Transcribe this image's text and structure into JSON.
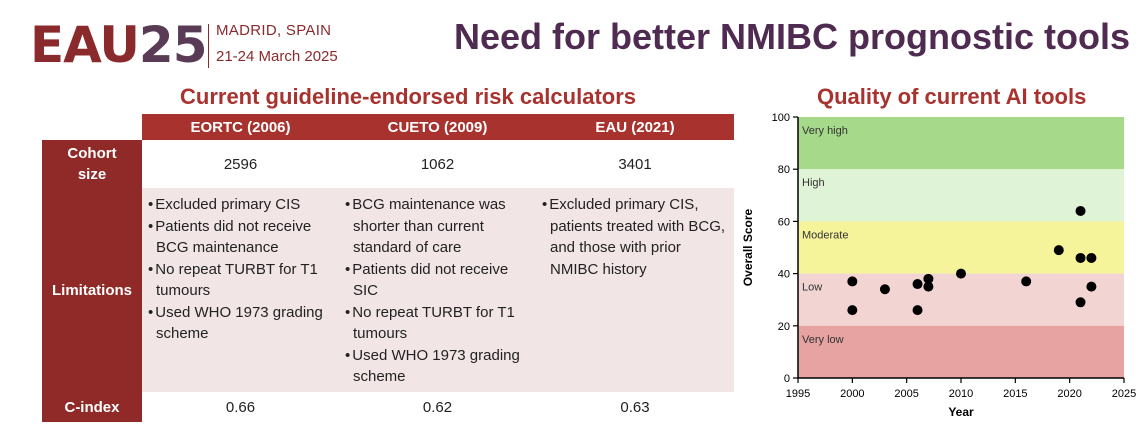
{
  "logo": {
    "mark": "EAU",
    "mark_year": "25",
    "city": "MADRID, SPAIN",
    "dates": "21-24 March 2025"
  },
  "title": "Need for better NMIBC prognostic tools",
  "left_section": {
    "title": "Current guideline-endorsed risk calculators",
    "columns": [
      "EORTC (2006)",
      "CUETO (2009)",
      "EAU (2021)"
    ],
    "rows": {
      "cohort": {
        "label_line1": "Cohort",
        "label_line2": "size",
        "values": [
          "2596",
          "1062",
          "3401"
        ]
      },
      "limitations": {
        "label": "Limitations",
        "cells": [
          [
            "Excluded primary CIS",
            "Patients did not receive BCG maintenance",
            "No repeat TURBT for T1 tumours",
            "Used WHO 1973 grading scheme"
          ],
          [
            "BCG maintenance was shorter than current standard of care",
            "Patients did not receive SIC",
            "No repeat TURBT for T1 tumours",
            "Used WHO 1973 grading scheme"
          ],
          [
            "Excluded primary CIS, patients treated with BCG, and those with prior NMIBC history"
          ]
        ]
      },
      "cindex": {
        "label": "C-index",
        "values": [
          "0.66",
          "0.62",
          "0.63"
        ]
      }
    }
  },
  "right_section": {
    "title": "Quality of current AI tools",
    "chart_data": {
      "type": "scatter",
      "xlabel": "Year",
      "ylabel": "Overall Score",
      "xlim": [
        1995,
        2025
      ],
      "ylim": [
        0,
        100
      ],
      "xticks": [
        "1995",
        "2000",
        "2005",
        "2010",
        "2015",
        "2020",
        "2025"
      ],
      "yticks": [
        "0",
        "20",
        "40",
        "60",
        "80",
        "100"
      ],
      "bands": [
        {
          "label": "Very high",
          "from": 80,
          "to": 100,
          "color": "#a6d98a"
        },
        {
          "label": "High",
          "from": 60,
          "to": 80,
          "color": "#dff3d6"
        },
        {
          "label": "Moderate",
          "from": 40,
          "to": 60,
          "color": "#f6f49a"
        },
        {
          "label": "Low",
          "from": 20,
          "to": 40,
          "color": "#f2d5d3"
        },
        {
          "label": "Very low",
          "from": 0,
          "to": 20,
          "color": "#e6a3a1"
        }
      ],
      "points": [
        {
          "x": 2000,
          "y": 37
        },
        {
          "x": 2000,
          "y": 26
        },
        {
          "x": 2003,
          "y": 34
        },
        {
          "x": 2006,
          "y": 36
        },
        {
          "x": 2006,
          "y": 26
        },
        {
          "x": 2007,
          "y": 38
        },
        {
          "x": 2007,
          "y": 35
        },
        {
          "x": 2010,
          "y": 40
        },
        {
          "x": 2016,
          "y": 37
        },
        {
          "x": 2019,
          "y": 49
        },
        {
          "x": 2021,
          "y": 64
        },
        {
          "x": 2021,
          "y": 46
        },
        {
          "x": 2021,
          "y": 29
        },
        {
          "x": 2022,
          "y": 46
        },
        {
          "x": 2022,
          "y": 35
        }
      ]
    }
  }
}
